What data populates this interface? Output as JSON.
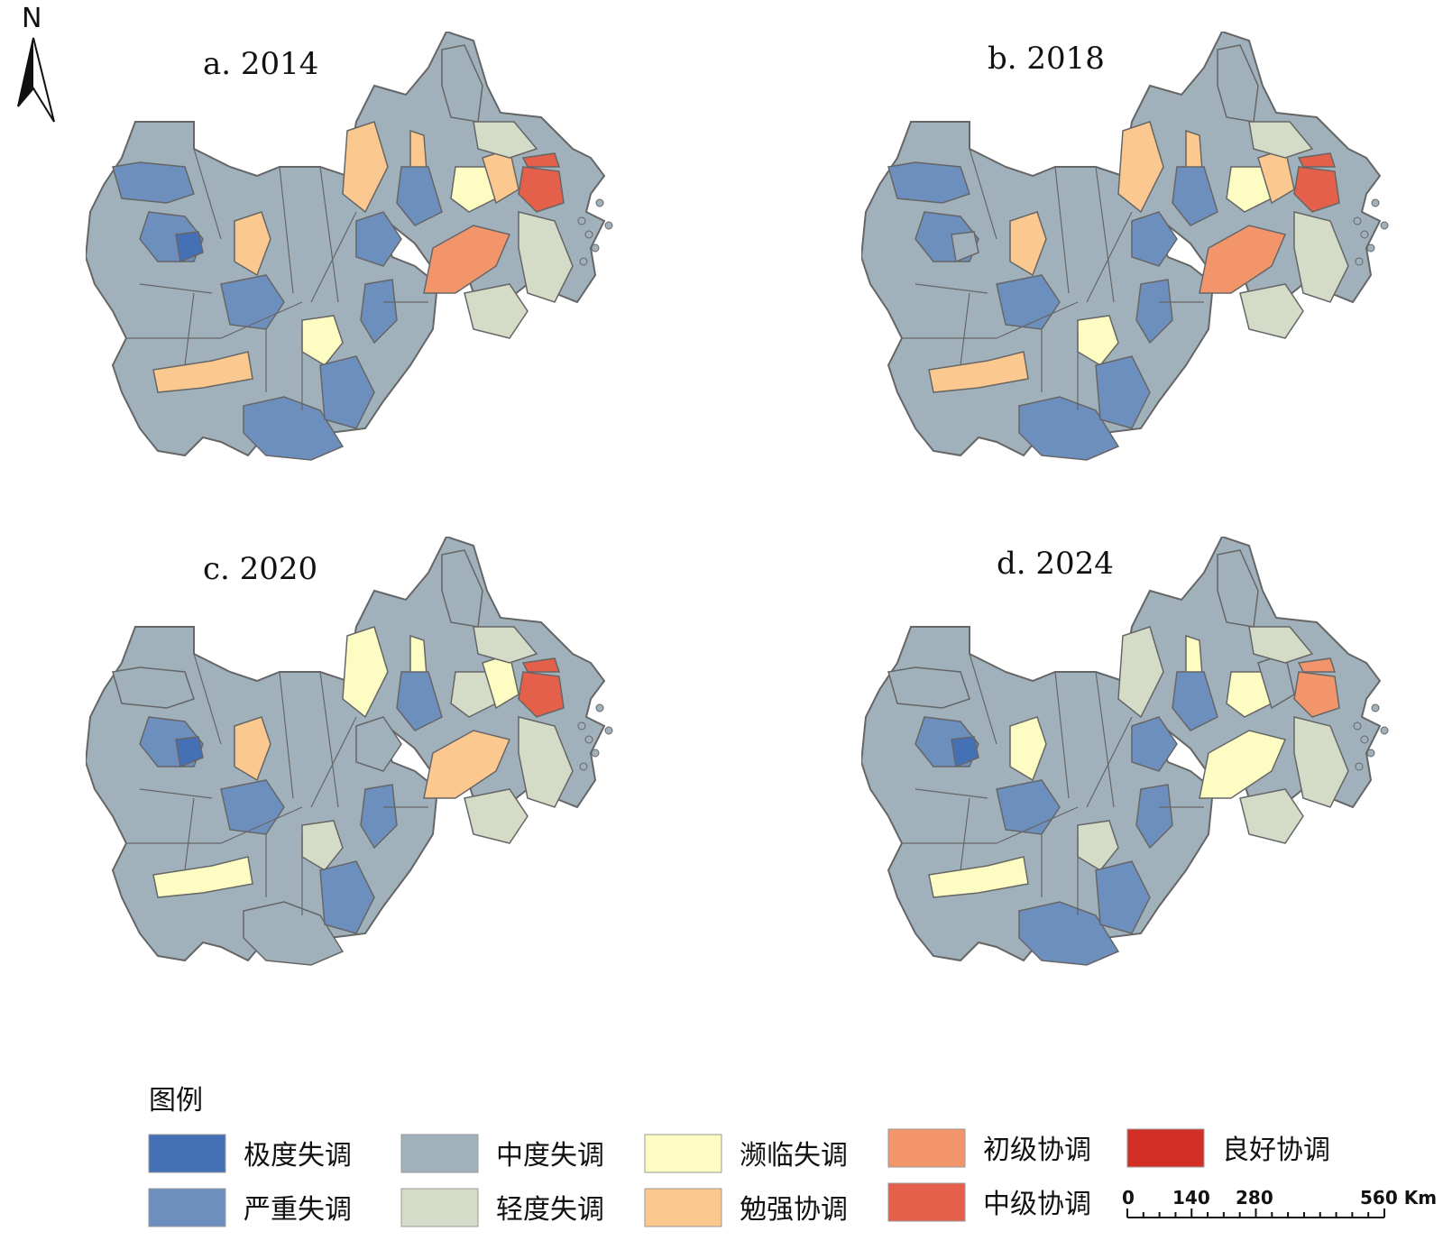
{
  "north_arrow": {
    "label": "N"
  },
  "panels": [
    {
      "title": "a. 2014",
      "year": "2014"
    },
    {
      "title": "b. 2018",
      "year": "2018"
    },
    {
      "title": "c. 2020",
      "year": "2020"
    },
    {
      "title": "d. 2024",
      "year": "2024"
    }
  ],
  "legend": {
    "title": "图例",
    "items": [
      {
        "label": "极度失调",
        "color": "#4470b6"
      },
      {
        "label": "严重失调",
        "color": "#6d8fbe"
      },
      {
        "label": "中度失调",
        "color": "#a0b1bc"
      },
      {
        "label": "轻度失调",
        "color": "#d4dcc8"
      },
      {
        "label": "濒临失调",
        "color": "#fdfcc2"
      },
      {
        "label": "勉强协调",
        "color": "#fbc98f"
      },
      {
        "label": "初级协调",
        "color": "#f2956a"
      },
      {
        "label": "中级协调",
        "color": "#e4604a"
      },
      {
        "label": "良好协调",
        "color": "#d32f27"
      }
    ]
  },
  "scale_bar": {
    "ticks": [
      "0",
      "140",
      "280"
    ],
    "end_label": "560 Km"
  },
  "region_color_key": {
    "extreme": "#4470b6",
    "severe": "#6d8fbe",
    "moderate": "#a0b1bc",
    "mild": "#d4dcc8",
    "verge": "#fdfcc2",
    "barely": "#fbc98f",
    "primary": "#f2956a",
    "intermediate": "#e4604a",
    "good": "#d32f27"
  }
}
